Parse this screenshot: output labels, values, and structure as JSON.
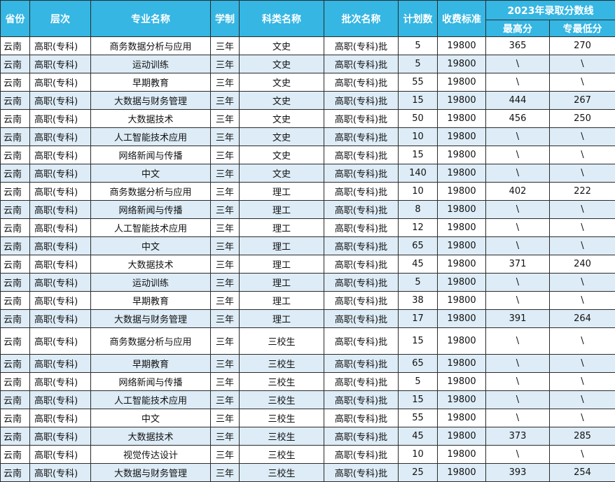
{
  "headers": {
    "province": "省份",
    "level": "层次",
    "major": "专业名称",
    "duration": "学制",
    "category": "科类名称",
    "batch": "批次名称",
    "plan": "计划数",
    "fee": "收费标准",
    "score_group": "2023年录取分数线",
    "max": "最高分",
    "min": "专最低分"
  },
  "rows": [
    {
      "province": "云南",
      "level": "高职(专科)",
      "major": "商务数据分析与应用",
      "duration": "三年",
      "category": "文史",
      "batch": "高职(专科)批",
      "plan": "5",
      "fee": "19800",
      "max": "365",
      "min": "270"
    },
    {
      "province": "云南",
      "level": "高职(专科)",
      "major": "运动训练",
      "duration": "三年",
      "category": "文史",
      "batch": "高职(专科)批",
      "plan": "5",
      "fee": "19800",
      "max": "\\",
      "min": "\\"
    },
    {
      "province": "云南",
      "level": "高职(专科)",
      "major": "早期教育",
      "duration": "三年",
      "category": "文史",
      "batch": "高职(专科)批",
      "plan": "55",
      "fee": "19800",
      "max": "\\",
      "min": "\\"
    },
    {
      "province": "云南",
      "level": "高职(专科)",
      "major": "大数据与财务管理",
      "duration": "三年",
      "category": "文史",
      "batch": "高职(专科)批",
      "plan": "15",
      "fee": "19800",
      "max": "444",
      "min": "267"
    },
    {
      "province": "云南",
      "level": "高职(专科)",
      "major": "大数据技术",
      "duration": "三年",
      "category": "文史",
      "batch": "高职(专科)批",
      "plan": "50",
      "fee": "19800",
      "max": "456",
      "min": "250"
    },
    {
      "province": "云南",
      "level": "高职(专科)",
      "major": "人工智能技术应用",
      "duration": "三年",
      "category": "文史",
      "batch": "高职(专科)批",
      "plan": "10",
      "fee": "19800",
      "max": "\\",
      "min": "\\"
    },
    {
      "province": "云南",
      "level": "高职(专科)",
      "major": "网络新闻与传播",
      "duration": "三年",
      "category": "文史",
      "batch": "高职(专科)批",
      "plan": "15",
      "fee": "19800",
      "max": "\\",
      "min": "\\"
    },
    {
      "province": "云南",
      "level": "高职(专科)",
      "major": "中文",
      "duration": "三年",
      "category": "文史",
      "batch": "高职(专科)批",
      "plan": "140",
      "fee": "19800",
      "max": "\\",
      "min": "\\"
    },
    {
      "province": "云南",
      "level": "高职(专科)",
      "major": "商务数据分析与应用",
      "duration": "三年",
      "category": "理工",
      "batch": "高职(专科)批",
      "plan": "10",
      "fee": "19800",
      "max": "402",
      "min": "222"
    },
    {
      "province": "云南",
      "level": "高职(专科)",
      "major": "网络新闻与传播",
      "duration": "三年",
      "category": "理工",
      "batch": "高职(专科)批",
      "plan": "8",
      "fee": "19800",
      "max": "\\",
      "min": "\\"
    },
    {
      "province": "云南",
      "level": "高职(专科)",
      "major": "人工智能技术应用",
      "duration": "三年",
      "category": "理工",
      "batch": "高职(专科)批",
      "plan": "12",
      "fee": "19800",
      "max": "\\",
      "min": "\\"
    },
    {
      "province": "云南",
      "level": "高职(专科)",
      "major": "中文",
      "duration": "三年",
      "category": "理工",
      "batch": "高职(专科)批",
      "plan": "65",
      "fee": "19800",
      "max": "\\",
      "min": "\\"
    },
    {
      "province": "云南",
      "level": "高职(专科)",
      "major": "大数据技术",
      "duration": "三年",
      "category": "理工",
      "batch": "高职(专科)批",
      "plan": "45",
      "fee": "19800",
      "max": "371",
      "min": "240"
    },
    {
      "province": "云南",
      "level": "高职(专科)",
      "major": "运动训练",
      "duration": "三年",
      "category": "理工",
      "batch": "高职(专科)批",
      "plan": "5",
      "fee": "19800",
      "max": "\\",
      "min": "\\"
    },
    {
      "province": "云南",
      "level": "高职(专科)",
      "major": "早期教育",
      "duration": "三年",
      "category": "理工",
      "batch": "高职(专科)批",
      "plan": "38",
      "fee": "19800",
      "max": "\\",
      "min": "\\"
    },
    {
      "province": "云南",
      "level": "高职(专科)",
      "major": "大数据与财务管理",
      "duration": "三年",
      "category": "理工",
      "batch": "高职(专科)批",
      "plan": "17",
      "fee": "19800",
      "max": "391",
      "min": "264"
    },
    {
      "province": "云南",
      "level": "高职(专科)",
      "major": "商务数据分析与应用",
      "duration": "三年",
      "category": "三校生",
      "batch": "高职(专科)批",
      "plan": "15",
      "fee": "19800",
      "max": "\\",
      "min": "\\"
    },
    {
      "province": "云南",
      "level": "高职(专科)",
      "major": "早期教育",
      "duration": "三年",
      "category": "三校生",
      "batch": "高职(专科)批",
      "plan": "65",
      "fee": "19800",
      "max": "\\",
      "min": "\\"
    },
    {
      "province": "云南",
      "level": "高职(专科)",
      "major": "网络新闻与传播",
      "duration": "三年",
      "category": "三校生",
      "batch": "高职(专科)批",
      "plan": "5",
      "fee": "19800",
      "max": "\\",
      "min": "\\"
    },
    {
      "province": "云南",
      "level": "高职(专科)",
      "major": "人工智能技术应用",
      "duration": "三年",
      "category": "三校生",
      "batch": "高职(专科)批",
      "plan": "15",
      "fee": "19800",
      "max": "\\",
      "min": "\\"
    },
    {
      "province": "云南",
      "level": "高职(专科)",
      "major": "中文",
      "duration": "三年",
      "category": "三校生",
      "batch": "高职(专科)批",
      "plan": "55",
      "fee": "19800",
      "max": "\\",
      "min": "\\"
    },
    {
      "province": "云南",
      "level": "高职(专科)",
      "major": "大数据技术",
      "duration": "三年",
      "category": "三校生",
      "batch": "高职(专科)批",
      "plan": "45",
      "fee": "19800",
      "max": "373",
      "min": "285"
    },
    {
      "province": "云南",
      "level": "高职(专科)",
      "major": "视觉传达设计",
      "duration": "三年",
      "category": "三校生",
      "batch": "高职(专科)批",
      "plan": "10",
      "fee": "19800",
      "max": "\\",
      "min": "\\"
    },
    {
      "province": "云南",
      "level": "高职(专科)",
      "major": "大数据与财务管理",
      "duration": "三年",
      "category": "三校生",
      "batch": "高职(专科)批",
      "plan": "25",
      "fee": "19800",
      "max": "393",
      "min": "254"
    }
  ]
}
